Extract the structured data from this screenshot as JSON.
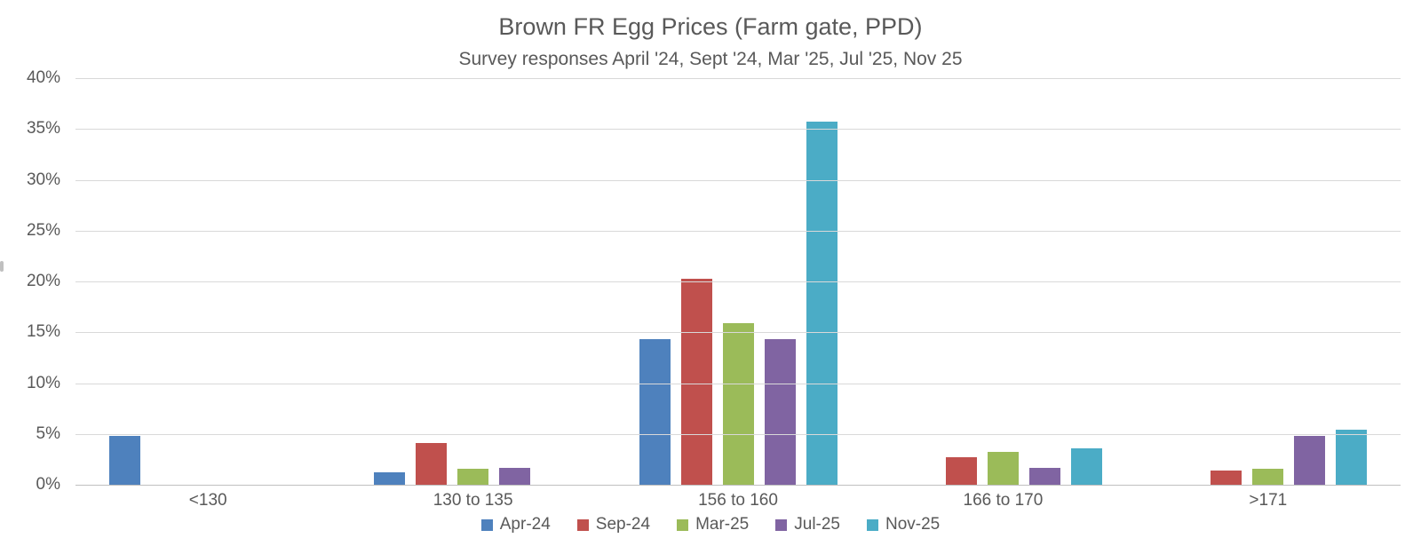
{
  "header": {
    "title": "Brown FR Egg Prices (Farm gate, PPD)",
    "subtitle": "Survey responses April '24, Sept '24, Mar '25, Jul '25, Nov 25"
  },
  "chart_data": {
    "type": "bar",
    "title": "Brown FR Egg Prices (Farm gate, PPD)",
    "subtitle": "Survey responses April '24, Sept '24, Mar '25, Jul '25, Nov 25",
    "categories": [
      "<130",
      "130 to 135",
      "156 to 160",
      "166 to 170",
      ">171"
    ],
    "series": [
      {
        "name": "Apr-24",
        "color": "#4E81BD",
        "values": [
          4.8,
          1.2,
          14.3,
          0,
          0
        ]
      },
      {
        "name": "Sep-24",
        "color": "#C0504D",
        "values": [
          0,
          4.1,
          20.3,
          2.7,
          1.4
        ]
      },
      {
        "name": "Mar-25",
        "color": "#9BBB59",
        "values": [
          0,
          1.6,
          15.9,
          3.2,
          1.6
        ]
      },
      {
        "name": "Jul-25",
        "color": "#8064A2",
        "values": [
          0,
          1.7,
          14.3,
          1.7,
          4.8
        ]
      },
      {
        "name": "Nov-25",
        "color": "#4BACC6",
        "values": [
          0,
          0,
          35.7,
          3.6,
          5.4
        ]
      }
    ],
    "xlabel": "",
    "ylabel": "",
    "ylim": [
      0,
      40
    ],
    "yticks": [
      0,
      5,
      10,
      15,
      20,
      25,
      30,
      35,
      40
    ],
    "ytick_suffix": "%",
    "grid": true,
    "legend_position": "bottom"
  },
  "colors": {
    "text": "#595959",
    "gridline": "#D9D9D9",
    "axis_line": "#BFBFBF",
    "background": "#FFFFFF"
  }
}
